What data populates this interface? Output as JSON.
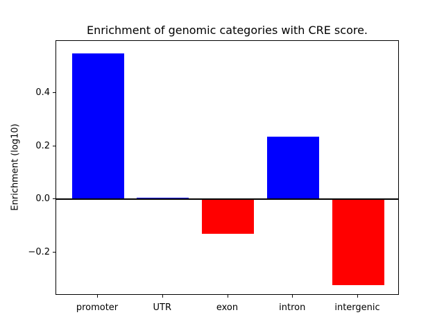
{
  "title": "Enrichment of genomic categories with CRE score.",
  "chart_data": {
    "type": "bar",
    "title": "Enrichment of genomic categories with CRE score.",
    "xlabel": "",
    "ylabel": "Enrichment (log10)",
    "categories": [
      "promoter",
      "UTR",
      "exon",
      "intron",
      "intergenic"
    ],
    "values": [
      0.55,
      0.005,
      -0.13,
      0.235,
      -0.325
    ],
    "bar_colors": [
      "#0000ff",
      "#0000ff",
      "#ff0000",
      "#0000ff",
      "#ff0000"
    ],
    "positive_color": "#0000ff",
    "negative_color": "#ff0000",
    "yticks": {
      "labels": [
        "0.4",
        "0.2",
        "0.0",
        "−0.2"
      ],
      "values": [
        0.4,
        0.2,
        0.0,
        -0.2
      ]
    },
    "ylim": [
      -0.363,
      0.596
    ],
    "xlim": [
      -0.64,
      4.64
    ],
    "bar_width_fraction": 0.8,
    "zero_line": true,
    "grid": false,
    "legend": null
  }
}
